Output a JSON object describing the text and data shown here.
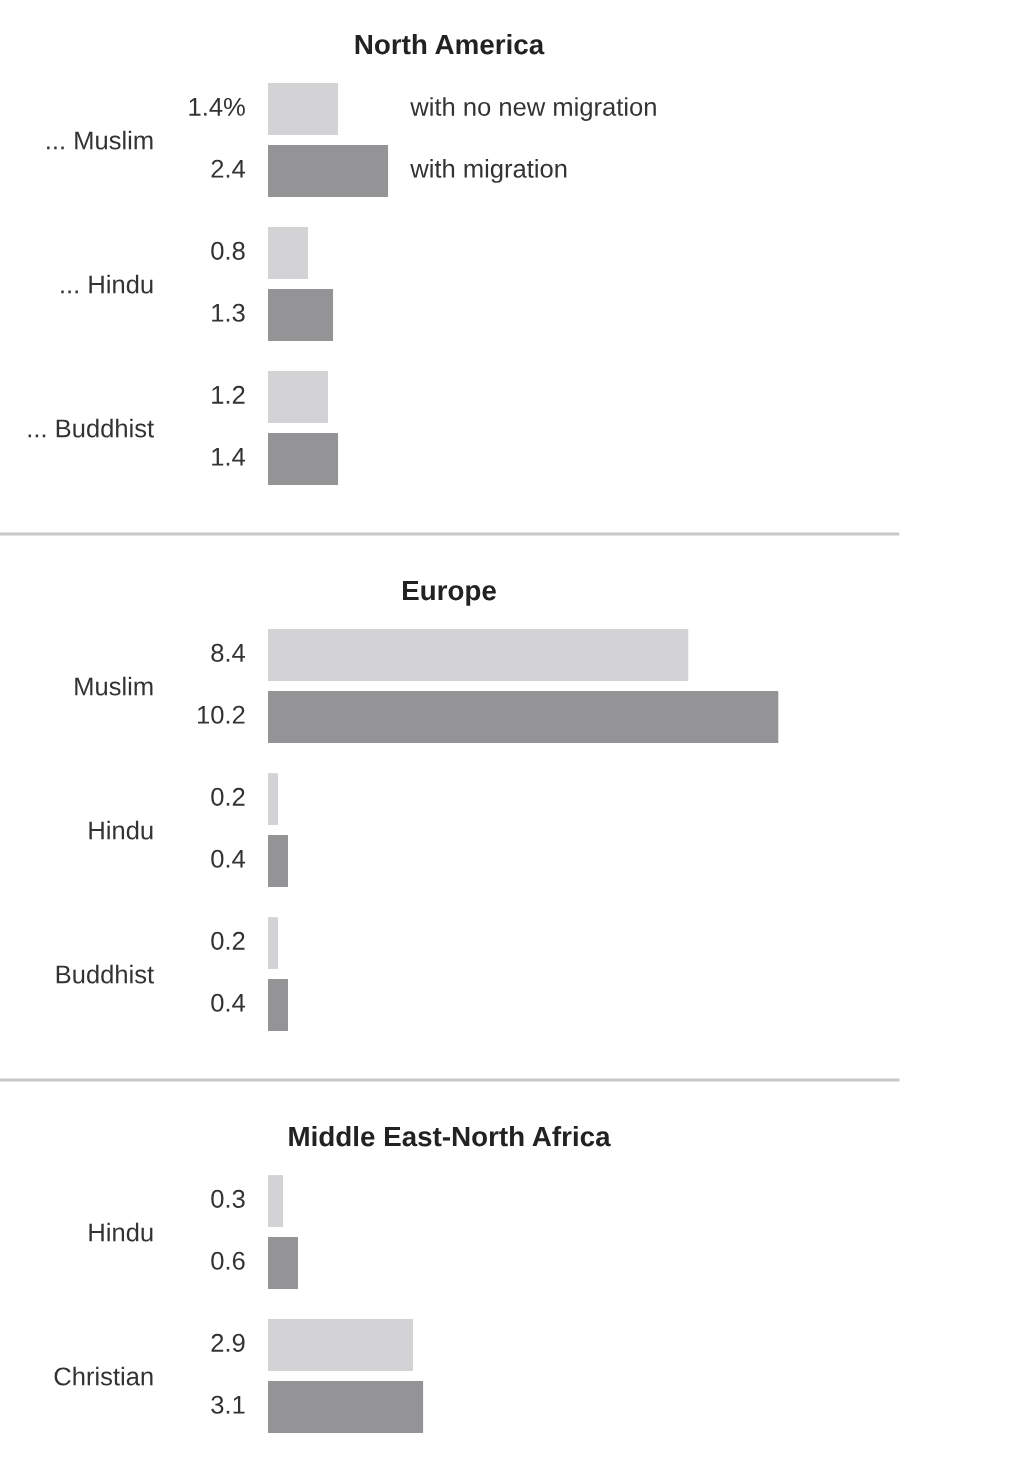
{
  "chart_data": [
    {
      "type": "bar",
      "orientation": "horizontal",
      "title": "North America",
      "categories": [
        "... Muslim",
        "... Hindu",
        "... Buddhist"
      ],
      "series": [
        {
          "name": "with no new migration",
          "color": "#d3d3d5",
          "values": [
            1.4,
            0.8,
            1.2
          ],
          "value_labels": [
            "1.4%",
            "0.8",
            "1.2"
          ]
        },
        {
          "name": "with migration",
          "color": "#949497",
          "values": [
            2.4,
            1.3,
            1.4
          ],
          "value_labels": [
            "2.4",
            "1.3",
            "1.4"
          ]
        }
      ],
      "tick_labels": "y"
    },
    {
      "type": "bar",
      "orientation": "horizontal",
      "title": "Europe",
      "categories": [
        "Muslim",
        "Hindu",
        "Buddhist"
      ],
      "series": [
        {
          "color": "#d3d3d5",
          "values": [
            8.4,
            0.2,
            0.2
          ]
        },
        {
          "color": "#949497",
          "values": [
            10.2,
            0.4,
            0.4
          ]
        }
      ],
      "data_labels": true,
      "tick_labels": "y"
    },
    {
      "type": "bar",
      "orientation": "horizontal",
      "title": "Middle East-North Africa",
      "categories": [
        "Hindu",
        "Christian"
      ],
      "series": [
        {
          "color": "#d3d3d5",
          "values": [
            0.3,
            2.9
          ]
        },
        {
          "color": "#949497",
          "values": [
            0.6,
            3.1
          ]
        }
      ],
      "data_labels": true,
      "tick_labels": "y"
    }
  ]
}
